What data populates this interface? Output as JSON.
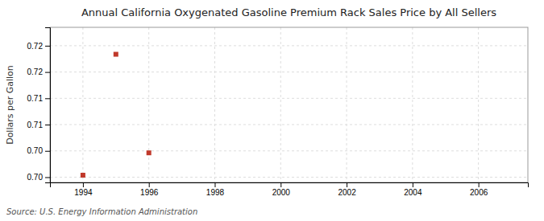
{
  "chart_data": {
    "type": "scatter",
    "title": "Annual California Oxygenated Gasoline Premium Rack Sales Price by All Sellers",
    "ylabel": "Dollars per Gallon",
    "source": "Source: U.S. Energy Information Administration",
    "x": [
      1994,
      1995,
      1996
    ],
    "values": [
      0.7003,
      0.7187,
      0.7037
    ],
    "color": "#c0392b",
    "marker": "square",
    "xlim": [
      1993.0,
      2007.5
    ],
    "ylim": [
      0.6992,
      0.7228
    ],
    "xticks": [
      1994,
      1996,
      1998,
      2000,
      2002,
      2004,
      2006
    ],
    "yticks": [
      {
        "value": 0.7,
        "label": "0.70"
      },
      {
        "value": 0.704,
        "label": "0.70"
      },
      {
        "value": 0.708,
        "label": "0.71"
      },
      {
        "value": 0.712,
        "label": "0.71"
      },
      {
        "value": 0.716,
        "label": "0.72"
      },
      {
        "value": 0.72,
        "label": "0.72"
      }
    ],
    "grid": true
  }
}
